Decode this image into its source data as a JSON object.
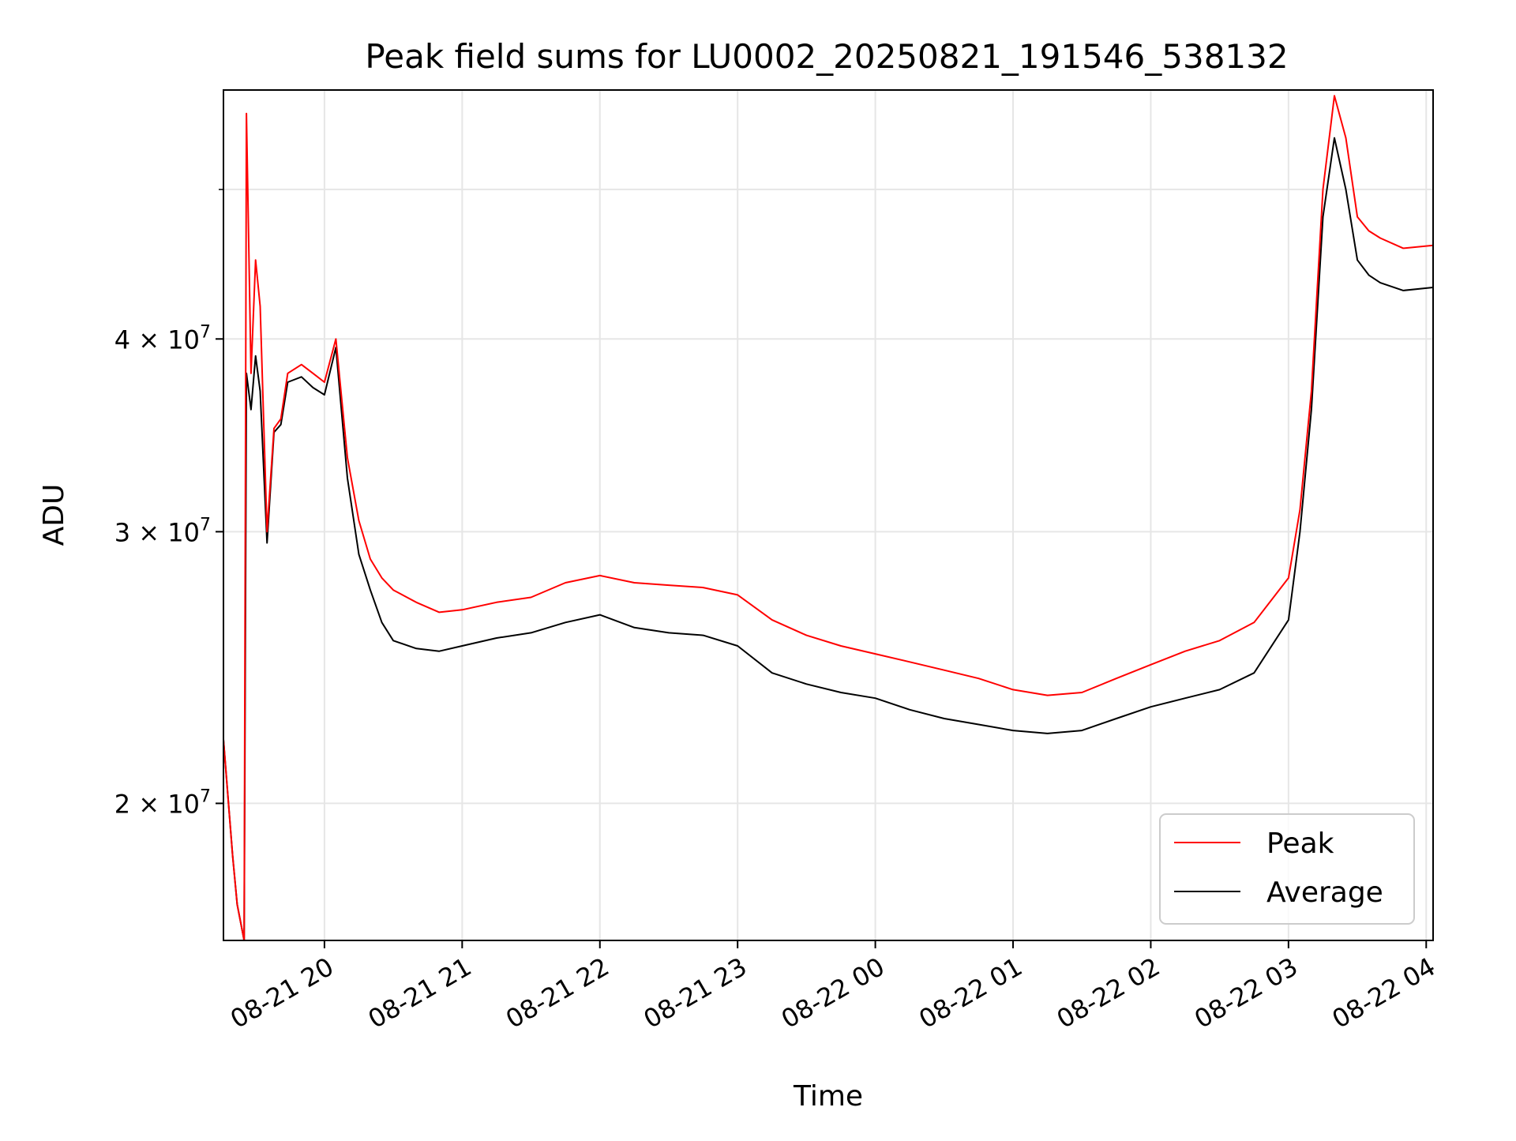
{
  "chart_data": {
    "type": "line",
    "title": "Peak field sums for LU0002_20250821_191546_538132",
    "xlabel": "Time",
    "ylabel": "ADU",
    "x_axis_kind": "datetime",
    "xlim": [
      "2025-08-21 19:16",
      "2025-08-22 04:03"
    ],
    "x_ticks": [
      "08-21 20",
      "08-21 21",
      "08-21 22",
      "08-21 23",
      "08-22 00",
      "08-22 01",
      "08-22 02",
      "08-22 03",
      "08-22 04"
    ],
    "x_tick_times": [
      "2025-08-21 20:00",
      "2025-08-21 21:00",
      "2025-08-21 22:00",
      "2025-08-21 23:00",
      "2025-08-22 00:00",
      "2025-08-22 01:00",
      "2025-08-22 02:00",
      "2025-08-22 03:00",
      "2025-08-22 04:00"
    ],
    "y_scale": "log",
    "ylim": [
      16300000,
      58000000
    ],
    "y_ticks": [
      {
        "value": 20000000,
        "mantissa": "2",
        "base": "10",
        "exp": "7"
      },
      {
        "value": 30000000,
        "mantissa": "3",
        "base": "10",
        "exp": "7"
      },
      {
        "value": 40000000,
        "mantissa": "4",
        "base": "10",
        "exp": "7"
      }
    ],
    "y_minor_ticks": [
      50000000
    ],
    "grid": true,
    "legend": {
      "position": "lower-right",
      "entries": [
        "Peak",
        "Average"
      ]
    },
    "colors": {
      "Peak": "#ff0000",
      "Average": "#000000"
    },
    "series": [
      {
        "name": "Peak",
        "x": [
          "2025-08-21 19:16",
          "2025-08-21 19:20",
          "2025-08-21 19:22",
          "2025-08-21 19:25",
          "2025-08-21 19:26",
          "2025-08-21 19:28",
          "2025-08-21 19:30",
          "2025-08-21 19:32",
          "2025-08-21 19:35",
          "2025-08-21 19:38",
          "2025-08-21 19:41",
          "2025-08-21 19:44",
          "2025-08-21 19:50",
          "2025-08-21 19:55",
          "2025-08-21 20:00",
          "2025-08-21 20:05",
          "2025-08-21 20:10",
          "2025-08-21 20:15",
          "2025-08-21 20:20",
          "2025-08-21 20:25",
          "2025-08-21 20:30",
          "2025-08-21 20:40",
          "2025-08-21 20:50",
          "2025-08-21 21:00",
          "2025-08-21 21:15",
          "2025-08-21 21:30",
          "2025-08-21 21:45",
          "2025-08-21 22:00",
          "2025-08-21 22:15",
          "2025-08-21 22:30",
          "2025-08-21 22:45",
          "2025-08-21 23:00",
          "2025-08-21 23:15",
          "2025-08-21 23:30",
          "2025-08-21 23:45",
          "2025-08-22 00:00",
          "2025-08-22 00:15",
          "2025-08-22 00:30",
          "2025-08-22 00:45",
          "2025-08-22 01:00",
          "2025-08-22 01:15",
          "2025-08-22 01:30",
          "2025-08-22 01:45",
          "2025-08-22 02:00",
          "2025-08-22 02:15",
          "2025-08-22 02:30",
          "2025-08-22 02:45",
          "2025-08-22 03:00",
          "2025-08-22 03:05",
          "2025-08-22 03:10",
          "2025-08-22 03:15",
          "2025-08-22 03:20",
          "2025-08-22 03:25",
          "2025-08-22 03:30",
          "2025-08-22 03:35",
          "2025-08-22 03:40",
          "2025-08-22 03:50",
          "2025-08-22 04:03"
        ],
        "y": [
          22000000,
          18500000,
          17200000,
          16300000,
          56000000,
          38000000,
          45000000,
          42000000,
          30000000,
          35000000,
          35500000,
          38000000,
          38500000,
          38000000,
          37500000,
          40000000,
          33500000,
          30500000,
          28800000,
          28000000,
          27500000,
          27000000,
          26600000,
          26700000,
          27000000,
          27200000,
          27800000,
          28100000,
          27800000,
          27700000,
          27600000,
          27300000,
          26300000,
          25700000,
          25300000,
          25000000,
          24700000,
          24400000,
          24100000,
          23700000,
          23500000,
          23600000,
          24100000,
          24600000,
          25100000,
          25500000,
          26200000,
          28000000,
          31000000,
          37000000,
          50000000,
          57500000,
          54000000,
          48000000,
          47000000,
          46500000,
          45800000,
          46000000
        ]
      },
      {
        "name": "Average",
        "x": [
          "2025-08-21 19:16",
          "2025-08-21 19:20",
          "2025-08-21 19:22",
          "2025-08-21 19:25",
          "2025-08-21 19:26",
          "2025-08-21 19:28",
          "2025-08-21 19:30",
          "2025-08-21 19:32",
          "2025-08-21 19:35",
          "2025-08-21 19:38",
          "2025-08-21 19:41",
          "2025-08-21 19:44",
          "2025-08-21 19:50",
          "2025-08-21 19:55",
          "2025-08-21 20:00",
          "2025-08-21 20:05",
          "2025-08-21 20:10",
          "2025-08-21 20:15",
          "2025-08-21 20:20",
          "2025-08-21 20:25",
          "2025-08-21 20:30",
          "2025-08-21 20:40",
          "2025-08-21 20:50",
          "2025-08-21 21:00",
          "2025-08-21 21:15",
          "2025-08-21 21:30",
          "2025-08-21 21:45",
          "2025-08-21 22:00",
          "2025-08-21 22:15",
          "2025-08-21 22:30",
          "2025-08-21 22:45",
          "2025-08-21 23:00",
          "2025-08-21 23:15",
          "2025-08-21 23:30",
          "2025-08-21 23:45",
          "2025-08-22 00:00",
          "2025-08-22 00:15",
          "2025-08-22 00:30",
          "2025-08-22 00:45",
          "2025-08-22 01:00",
          "2025-08-22 01:15",
          "2025-08-22 01:30",
          "2025-08-22 01:45",
          "2025-08-22 02:00",
          "2025-08-22 02:15",
          "2025-08-22 02:30",
          "2025-08-22 02:45",
          "2025-08-22 03:00",
          "2025-08-22 03:05",
          "2025-08-22 03:10",
          "2025-08-22 03:15",
          "2025-08-22 03:20",
          "2025-08-22 03:25",
          "2025-08-22 03:30",
          "2025-08-22 03:35",
          "2025-08-22 03:40",
          "2025-08-22 03:50",
          "2025-08-22 04:03"
        ],
        "y": [
          22000000,
          18500000,
          17200000,
          16300000,
          38000000,
          36000000,
          39000000,
          37000000,
          29500000,
          34800000,
          35200000,
          37500000,
          37800000,
          37200000,
          36800000,
          39500000,
          32500000,
          29000000,
          27500000,
          26200000,
          25500000,
          25200000,
          25100000,
          25300000,
          25600000,
          25800000,
          26200000,
          26500000,
          26000000,
          25800000,
          25700000,
          25300000,
          24300000,
          23900000,
          23600000,
          23400000,
          23000000,
          22700000,
          22500000,
          22300000,
          22200000,
          22300000,
          22700000,
          23100000,
          23400000,
          23700000,
          24300000,
          26300000,
          30000000,
          36000000,
          48000000,
          54000000,
          50000000,
          45000000,
          44000000,
          43500000,
          43000000,
          43200000
        ]
      }
    ]
  }
}
